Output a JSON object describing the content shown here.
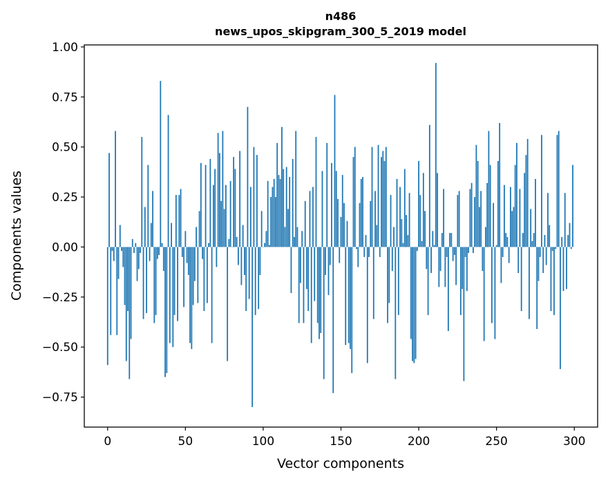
{
  "chart_data": {
    "type": "bar",
    "title": "n486",
    "subtitle": "news_upos_skipgram_300_5_2019 model",
    "xlabel": "Vector components",
    "ylabel": "Components values",
    "xlim": [
      -15,
      315
    ],
    "ylim": [
      -0.9,
      1.01
    ],
    "xticks": [
      0,
      50,
      100,
      150,
      200,
      250,
      300
    ],
    "xtick_labels": [
      "0",
      "50",
      "100",
      "150",
      "200",
      "250",
      "300"
    ],
    "yticks": [
      -0.75,
      -0.5,
      -0.25,
      0.0,
      0.25,
      0.5,
      0.75,
      1.0
    ],
    "ytick_labels": [
      "−0.75",
      "−0.50",
      "−0.25",
      "0.00",
      "0.25",
      "0.50",
      "0.75",
      "1.00"
    ],
    "bar_color": "#1f77b4",
    "grid": false,
    "x": "0..299",
    "values": [
      -0.59,
      0.47,
      -0.44,
      -0.02,
      -0.07,
      0.58,
      -0.44,
      -0.16,
      0.11,
      -0.02,
      -0.1,
      -0.29,
      -0.57,
      -0.32,
      -0.66,
      -0.46,
      0.04,
      -0.03,
      0.02,
      -0.17,
      -0.11,
      -0.03,
      0.55,
      -0.36,
      0.2,
      -0.33,
      0.41,
      -0.07,
      0.12,
      0.28,
      -0.38,
      -0.34,
      -0.06,
      -0.04,
      0.83,
      0.02,
      -0.12,
      -0.65,
      -0.63,
      0.66,
      -0.48,
      0.12,
      -0.5,
      -0.34,
      0.26,
      -0.37,
      0.26,
      0.29,
      -0.05,
      -0.3,
      0.08,
      -0.08,
      -0.14,
      -0.48,
      -0.51,
      -0.29,
      -0.17,
      0.1,
      -0.28,
      0.18,
      0.42,
      -0.06,
      -0.32,
      0.41,
      -0.28,
      0.02,
      0.44,
      -0.48,
      0.31,
      0.39,
      -0.1,
      0.57,
      0.47,
      0.23,
      0.58,
      0.19,
      0.31,
      -0.57,
      0.04,
      0.33,
      0.0,
      0.45,
      0.39,
      0.05,
      -0.09,
      0.48,
      -0.19,
      0.11,
      -0.14,
      -0.32,
      0.7,
      -0.26,
      0.3,
      -0.8,
      0.5,
      -0.34,
      0.46,
      -0.31,
      -0.14,
      0.18,
      0.0,
      0.02,
      0.08,
      0.33,
      0.01,
      0.25,
      0.3,
      0.34,
      0.25,
      0.52,
      0.36,
      0.34,
      0.6,
      0.39,
      0.1,
      0.4,
      0.19,
      0.35,
      -0.23,
      0.44,
      0.05,
      0.58,
      0.1,
      -0.38,
      -0.18,
      0.08,
      -0.38,
      0.23,
      -0.21,
      -0.32,
      0.28,
      -0.48,
      0.3,
      -0.27,
      0.55,
      -0.38,
      -0.46,
      -0.43,
      0.38,
      -0.66,
      -0.14,
      0.52,
      -0.24,
      -0.09,
      0.42,
      -0.73,
      0.76,
      0.38,
      0.24,
      -0.08,
      0.15,
      0.36,
      0.22,
      -0.49,
      0.13,
      -0.48,
      -0.51,
      -0.63,
      0.45,
      0.5,
      -0.01,
      -0.1,
      0.22,
      0.34,
      0.35,
      -0.05,
      0.06,
      -0.58,
      -0.05,
      0.23,
      0.5,
      -0.36,
      0.28,
      0.11,
      0.51,
      -0.05,
      0.45,
      0.48,
      0.43,
      0.5,
      -0.38,
      -0.28,
      0.26,
      -0.12,
      0.1,
      -0.66,
      0.34,
      -0.34,
      0.3,
      0.14,
      0.02,
      0.39,
      0.16,
      0.06,
      0.27,
      -0.46,
      -0.57,
      -0.58,
      -0.56,
      -0.02,
      0.43,
      0.26,
      0.03,
      0.37,
      0.18,
      -0.11,
      -0.34,
      0.61,
      -0.13,
      0.08,
      0.01,
      0.92,
      0.37,
      -0.2,
      -0.12,
      0.07,
      0.29,
      -0.2,
      -0.05,
      -0.42,
      0.07,
      0.07,
      -0.07,
      -0.04,
      -0.19,
      0.26,
      0.28,
      -0.34,
      -0.21,
      -0.67,
      -0.05,
      -0.22,
      -0.03,
      0.29,
      0.32,
      -0.03,
      0.25,
      0.51,
      0.43,
      0.2,
      0.28,
      -0.12,
      -0.47,
      0.1,
      0.32,
      0.58,
      0.41,
      -0.38,
      0.22,
      -0.46,
      0.01,
      0.43,
      0.62,
      -0.18,
      -0.05,
      0.31,
      0.07,
      0.05,
      -0.08,
      0.3,
      0.18,
      0.2,
      0.41,
      0.52,
      -0.13,
      0.29,
      -0.32,
      0.07,
      0.37,
      0.46,
      0.54,
      -0.36,
      0.19,
      0.03,
      0.07,
      0.34,
      -0.41,
      -0.17,
      -0.05,
      0.56,
      -0.13,
      0.06,
      -0.09,
      0.27,
      0.11,
      -0.32,
      -0.02,
      -0.34,
      -0.01,
      0.56,
      0.58,
      -0.61,
      0.05,
      -0.22,
      0.27,
      -0.21,
      0.06,
      0.12,
      -0.01,
      0.41
    ]
  }
}
